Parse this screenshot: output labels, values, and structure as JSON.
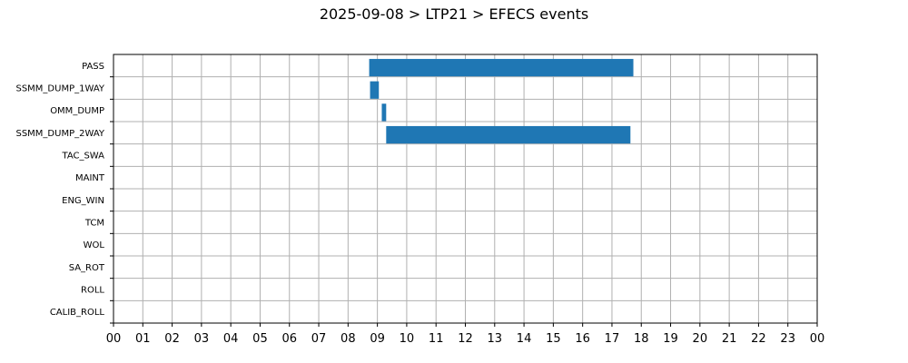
{
  "chart_data": {
    "type": "gantt",
    "title": "2025-09-08 > LTP21 > EFECS events",
    "xlabel": "",
    "ylabel": "",
    "x_range_hours": [
      0,
      24
    ],
    "x_tick_labels": [
      "00",
      "01",
      "02",
      "03",
      "04",
      "05",
      "06",
      "07",
      "08",
      "09",
      "10",
      "11",
      "12",
      "13",
      "14",
      "15",
      "16",
      "17",
      "18",
      "19",
      "20",
      "21",
      "22",
      "23",
      "00"
    ],
    "grid": true,
    "bar_color": "#1f77b4",
    "categories": [
      "PASS",
      "SSMM_DUMP_1WAY",
      "OMM_DUMP",
      "SSMM_DUMP_2WAY",
      "TAC_SWA",
      "MAINT",
      "ENG_WIN",
      "TCM",
      "WOL",
      "SA_ROT",
      "ROLL",
      "CALIB_ROLL"
    ],
    "events": [
      {
        "category": "PASS",
        "start": 8.72,
        "end": 17.73
      },
      {
        "category": "SSMM_DUMP_1WAY",
        "start": 8.75,
        "end": 9.05
      },
      {
        "category": "OMM_DUMP",
        "start": 9.15,
        "end": 9.3
      },
      {
        "category": "SSMM_DUMP_2WAY",
        "start": 9.3,
        "end": 17.63
      }
    ]
  }
}
